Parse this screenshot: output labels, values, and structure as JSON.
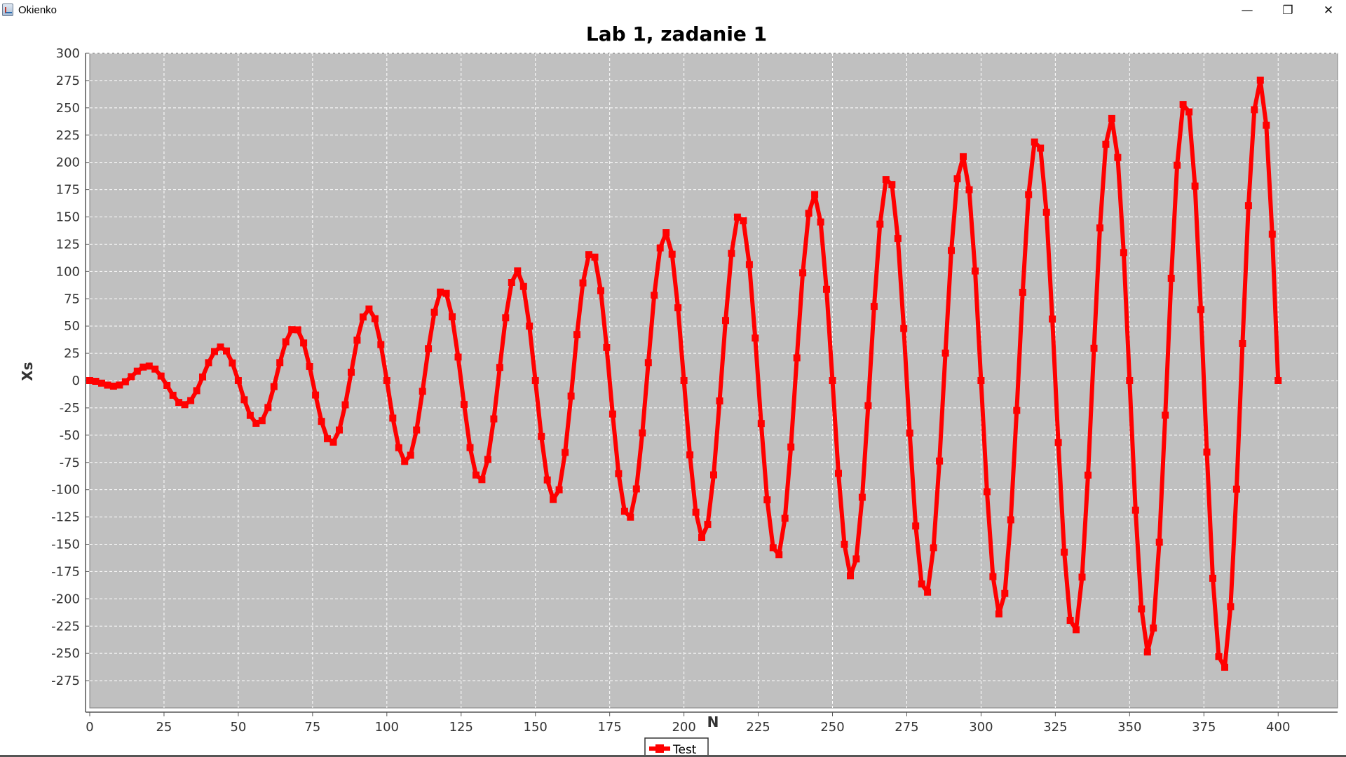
{
  "window": {
    "title": "Okienko",
    "minimize_glyph": "—",
    "restore_glyph": "❐",
    "close_glyph": "✕"
  },
  "icons": {
    "app": "java-cup-icon",
    "minimize": "minimize-icon",
    "restore": "restore-icon",
    "close": "close-icon"
  },
  "colors": {
    "plot_background": "#c0c0c0",
    "series": "#ff0000",
    "gridline": "#ffffff"
  },
  "chart_data": {
    "type": "line",
    "title": "Lab 1, zadanie 1",
    "xlabel": "N",
    "ylabel": "Xs",
    "xlim": [
      0,
      420
    ],
    "ylim": [
      -300,
      300
    ],
    "xticks": [
      0,
      25,
      50,
      75,
      100,
      125,
      150,
      175,
      200,
      225,
      250,
      275,
      300,
      325,
      350,
      375,
      400
    ],
    "yticks": [
      300,
      275,
      250,
      225,
      200,
      175,
      150,
      125,
      100,
      75,
      50,
      25,
      0,
      -25,
      -50,
      -75,
      -100,
      -125,
      -150,
      -175,
      -200,
      -225,
      -250,
      -275
    ],
    "grid": true,
    "legend_position": "bottom-center",
    "series": [
      {
        "name": "Test",
        "marker": "square",
        "x_start": 0,
        "x_end": 400,
        "x_step": 2,
        "formula": "-0.7 * n * sin(2*pi*n/25)",
        "description": "growing oscillation, period 25, amplitude ~0.7*n"
      }
    ]
  }
}
